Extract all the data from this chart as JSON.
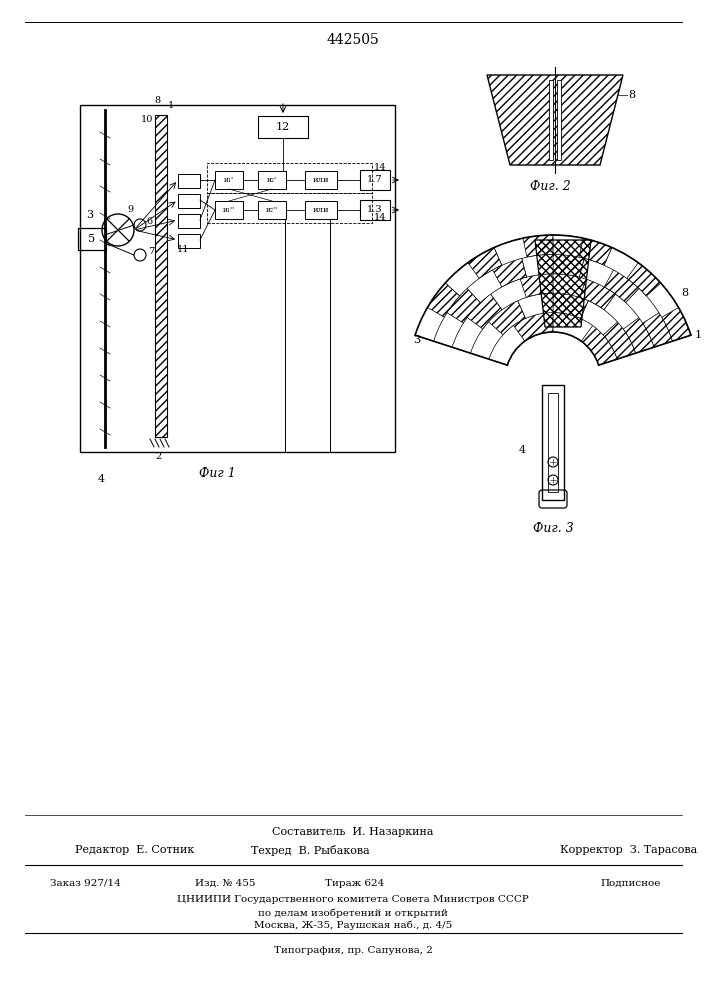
{
  "patent_number": "442505",
  "bg_color": "#ffffff",
  "line_color": "#000000",
  "fig1_label": "Фиг 1",
  "fig2_label": "Фиг. 2",
  "fig3_label": "Фиг. 3",
  "footer_line1": "Составитель  И. Назаркина",
  "footer_editor": "Редактор  Е. Сотник",
  "footer_tech": "Техред  В. Рыбакова",
  "footer_corrector": "Корректор  З. Тарасова",
  "footer_order": "Заказ 927/14",
  "footer_izd": "Изд. № 455",
  "footer_tirazh": "Тираж 624",
  "footer_podpis": "Подписное",
  "footer_org": "ЦНИИПИ Государственного комитета Совета Министров СССР",
  "footer_org2": "по делам изобретений и открытий",
  "footer_addr": "Москва, Ж-35, Раушская наб., д. 4/5",
  "footer_typo": "Типография, пр. Сапунова, 2"
}
